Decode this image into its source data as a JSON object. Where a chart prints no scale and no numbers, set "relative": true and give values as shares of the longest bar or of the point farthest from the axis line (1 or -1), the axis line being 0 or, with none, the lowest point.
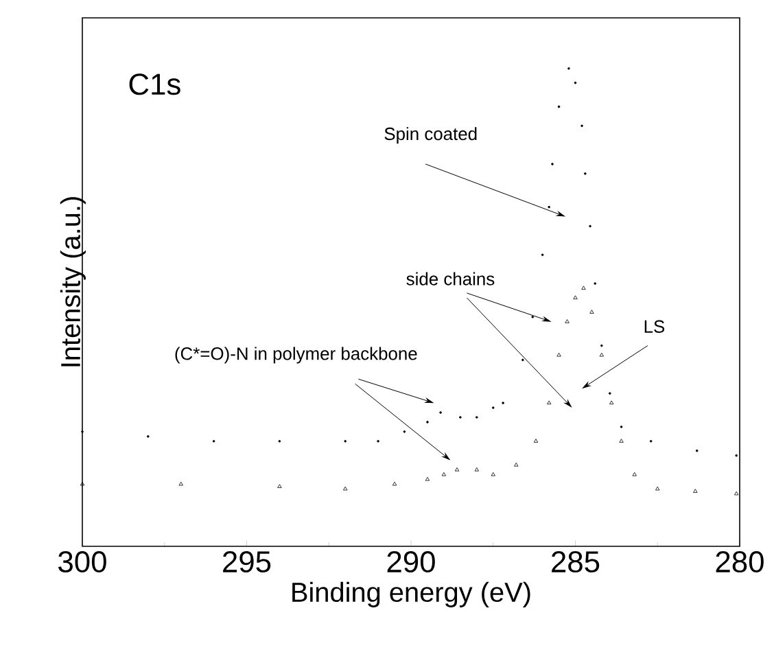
{
  "chart_data": {
    "type": "scatter",
    "relative": true,
    "xlabel": "Binding energy (eV)",
    "ylabel": "Intensity (a.u.)",
    "xlim": [
      300,
      280
    ],
    "xticks": [
      300,
      295,
      290,
      285,
      280
    ],
    "annotations": [
      "C1s",
      "Spin coated",
      "side chains",
      "LS",
      "(C*=O)-N in polymer backbone"
    ],
    "series": [
      {
        "marker": "circle",
        "color": "#000000",
        "x": [
          300,
          298,
          296,
          294,
          292,
          291,
          290.2,
          289.5,
          289.1,
          288.5,
          288,
          287.5,
          287.2,
          286.6,
          286.3,
          286.0,
          285.8,
          285.7,
          285.5,
          285.2,
          285.0,
          284.8,
          284.7,
          284.55,
          284.4,
          284.2,
          283.95,
          283.6,
          282.7,
          281.3,
          280.1
        ],
        "values": [
          0.24,
          0.23,
          0.22,
          0.22,
          0.22,
          0.22,
          0.24,
          0.26,
          0.28,
          0.27,
          0.27,
          0.29,
          0.3,
          0.39,
          0.48,
          0.61,
          0.71,
          0.8,
          0.92,
          1.0,
          0.97,
          0.88,
          0.78,
          0.67,
          0.55,
          0.42,
          0.32,
          0.25,
          0.22,
          0.2,
          0.19
        ]
      },
      {
        "marker": "triangle",
        "color": "#000000",
        "x": [
          300,
          297,
          294,
          292,
          290.5,
          289.5,
          289,
          288.6,
          288.0,
          287.5,
          286.8,
          286.2,
          285.8,
          285.5,
          285.25,
          285.0,
          284.75,
          284.5,
          284.2,
          283.9,
          283.6,
          283.2,
          282.5,
          281.35,
          280.1
        ],
        "values": [
          0.13,
          0.13,
          0.125,
          0.12,
          0.13,
          0.14,
          0.15,
          0.16,
          0.16,
          0.15,
          0.17,
          0.22,
          0.3,
          0.4,
          0.47,
          0.52,
          0.54,
          0.49,
          0.4,
          0.3,
          0.22,
          0.15,
          0.12,
          0.115,
          0.11
        ]
      }
    ]
  }
}
